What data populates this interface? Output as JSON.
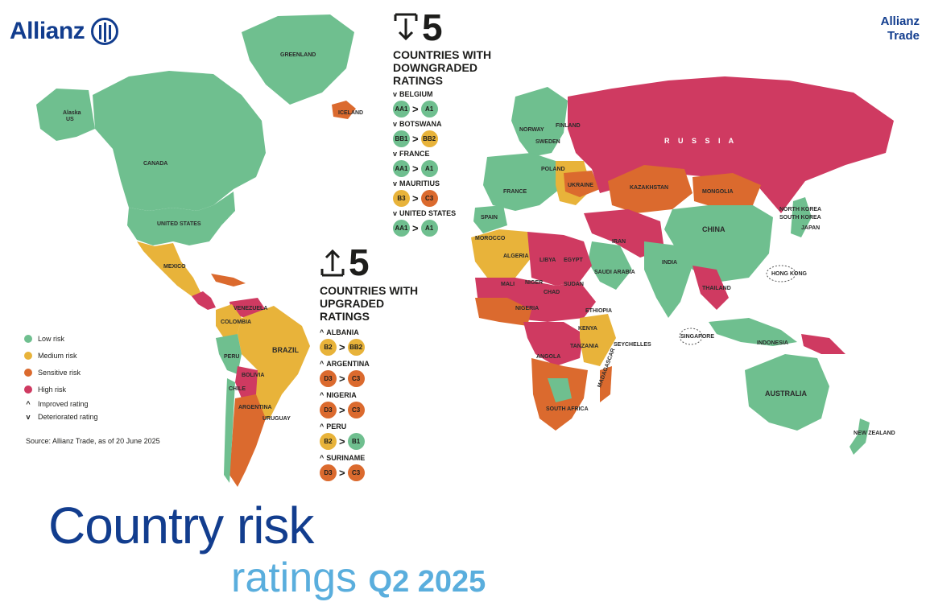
{
  "header": {
    "logo_text": "Allianz",
    "brand_right_line1": "Allianz",
    "brand_right_line2": "Trade"
  },
  "downgraded": {
    "count": "5",
    "title_lines": [
      "COUNTRIES WITH",
      "DOWNGRADED",
      "RATINGS"
    ],
    "items": [
      {
        "country": "BELGIUM",
        "from": "AA1",
        "to": "A1",
        "from_color": "#6fbf8f",
        "to_color": "#6fbf8f"
      },
      {
        "country": "BOTSWANA",
        "from": "BB1",
        "to": "BB2",
        "from_color": "#6fbf8f",
        "to_color": "#e8b33a"
      },
      {
        "country": "FRANCE",
        "from": "AA1",
        "to": "A1",
        "from_color": "#6fbf8f",
        "to_color": "#6fbf8f"
      },
      {
        "country": "MAURITIUS",
        "from": "B3",
        "to": "C3",
        "from_color": "#e8b33a",
        "to_color": "#db6a2e"
      },
      {
        "country": "UNITED STATES",
        "from": "AA1",
        "to": "A1",
        "from_color": "#6fbf8f",
        "to_color": "#6fbf8f"
      }
    ]
  },
  "upgraded": {
    "count": "5",
    "title_lines": [
      "COUNTRIES WITH",
      "UPGRADED",
      "RATINGS"
    ],
    "items": [
      {
        "country": "ALBANIA",
        "from": "B2",
        "to": "BB2",
        "from_color": "#e8b33a",
        "to_color": "#e8b33a"
      },
      {
        "country": "ARGENTINA",
        "from": "D3",
        "to": "C3",
        "from_color": "#db6a2e",
        "to_color": "#db6a2e"
      },
      {
        "country": "NIGERIA",
        "from": "D3",
        "to": "C3",
        "from_color": "#db6a2e",
        "to_color": "#db6a2e"
      },
      {
        "country": "PERU",
        "from": "B2",
        "to": "B1",
        "from_color": "#e8b33a",
        "to_color": "#6fbf8f"
      },
      {
        "country": "SURINAME",
        "from": "D3",
        "to": "C3",
        "from_color": "#db6a2e",
        "to_color": "#db6a2e"
      }
    ]
  },
  "legend": {
    "low": "Low risk",
    "medium": "Medium risk",
    "sensitive": "Sensitive risk",
    "high": "High risk",
    "improved": "Improved rating",
    "deteriorated": "Deteriorated rating",
    "colors": {
      "low": "#6fbf8f",
      "medium": "#e8b33a",
      "sensitive": "#db6a2e",
      "high": "#cf3a61"
    }
  },
  "source": "Source: Allianz Trade, as of 20 June 2025",
  "title": {
    "line1": "Country risk",
    "line2": "ratings",
    "quarter": "Q2 2025"
  },
  "map_labels": {
    "greenland": "GREENLAND",
    "alaska": "Alaska",
    "us_small": "US",
    "canada": "CANADA",
    "united_states": "UNITED STATES",
    "mexico": "MEXICO",
    "iceland": "ICELAND",
    "russia": "R U S S I A",
    "kazakhstan": "KAZAKHSTAN",
    "mongolia": "MONGOLIA",
    "china": "CHINA",
    "japan": "JAPAN",
    "india": "INDIA",
    "iran": "IRAN",
    "saudi_arabia": "SAUDI ARABIA",
    "algeria": "ALGERIA",
    "libya": "LIBYA",
    "egypt": "EGYPT",
    "sudan": "SUDAN",
    "nigeria": "NIGERIA",
    "ethiopia": "ETHIOPIA",
    "south_africa": "SOUTH AFRICA",
    "madagascar": "MADAGASCAR",
    "brazil": "BRAZIL",
    "argentina": "ARGENTINA",
    "bolivia": "BOLIVIA",
    "peru": "PERU",
    "colombia": "COLOMBIA",
    "venezuela": "VENEZUELA",
    "chile": "CHILE",
    "australia": "AUSTRALIA",
    "new_zealand": "NEW ZEALAND",
    "ukraine": "UKRAINE",
    "poland": "POLAND",
    "finland": "FINLAND",
    "sweden": "SWEDEN",
    "norway": "NORWAY",
    "spain": "SPAIN",
    "france": "FRANCE",
    "tanzania": "TANZANIA",
    "angola": "ANGOLA",
    "kenya": "KENYA",
    "seychelles": "SEYCHELLES",
    "singapore": "SINGAPORE",
    "hong_kong": "HONG KONG",
    "mali": "MALI",
    "niger": "NIGER",
    "chad": "CHAD",
    "morocco": "MOROCCO",
    "uruguay": "URUGUAY",
    "indonesia": "INDONESIA",
    "thailand": "THAILAND",
    "south_korea": "SOUTH KOREA",
    "north_korea": "NORTH KOREA"
  }
}
